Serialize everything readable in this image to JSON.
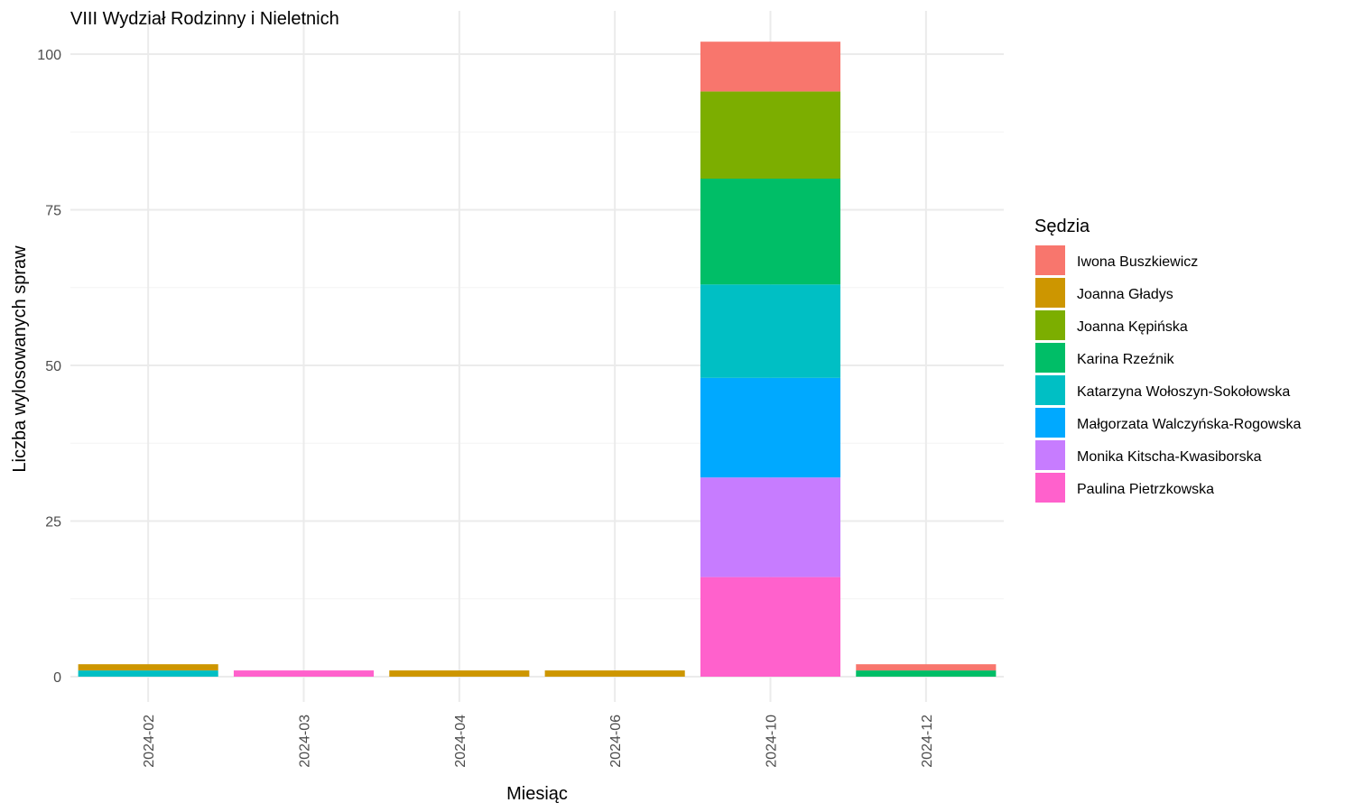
{
  "chart_data": {
    "type": "bar",
    "stacked": true,
    "title": "VIII Wydział Rodzinny i Nieletnich",
    "xlabel": "Miesiąc",
    "ylabel": "Liczba wylosowanych spraw",
    "ylim": [
      0,
      103
    ],
    "yticks": [
      0,
      25,
      50,
      75,
      100
    ],
    "grid": true,
    "legend_position": "right",
    "legend_title": "Sędzia",
    "categories": [
      "2024-02",
      "2024-03",
      "2024-04",
      "2024-06",
      "2024-10",
      "2024-12"
    ],
    "series": [
      {
        "name": "Iwona Buszkiewicz",
        "color": "#F8766D",
        "values": [
          0,
          0,
          0,
          0,
          8,
          1
        ]
      },
      {
        "name": "Joanna Gładys",
        "color": "#CD9600",
        "values": [
          1,
          0,
          1,
          1,
          0,
          0
        ]
      },
      {
        "name": "Joanna Kępińska",
        "color": "#7CAE00",
        "values": [
          0,
          0,
          0,
          0,
          14,
          0
        ]
      },
      {
        "name": "Karina Rzeźnik",
        "color": "#00BE67",
        "values": [
          0,
          0,
          0,
          0,
          17,
          1
        ]
      },
      {
        "name": "Katarzyna Wołoszyn-Sokołowska",
        "color": "#00BFC4",
        "values": [
          1,
          0,
          0,
          0,
          15,
          0
        ]
      },
      {
        "name": "Małgorzata Walczyńska-Rogowska",
        "color": "#00A9FF",
        "values": [
          0,
          0,
          0,
          0,
          16,
          0
        ]
      },
      {
        "name": "Monika Kitscha-Kwasiborska",
        "color": "#C77CFF",
        "values": [
          0,
          0,
          0,
          0,
          16,
          0
        ]
      },
      {
        "name": "Paulina Pietrzkowska",
        "color": "#FF61CC",
        "values": [
          0,
          1,
          0,
          0,
          16,
          0
        ]
      }
    ]
  }
}
